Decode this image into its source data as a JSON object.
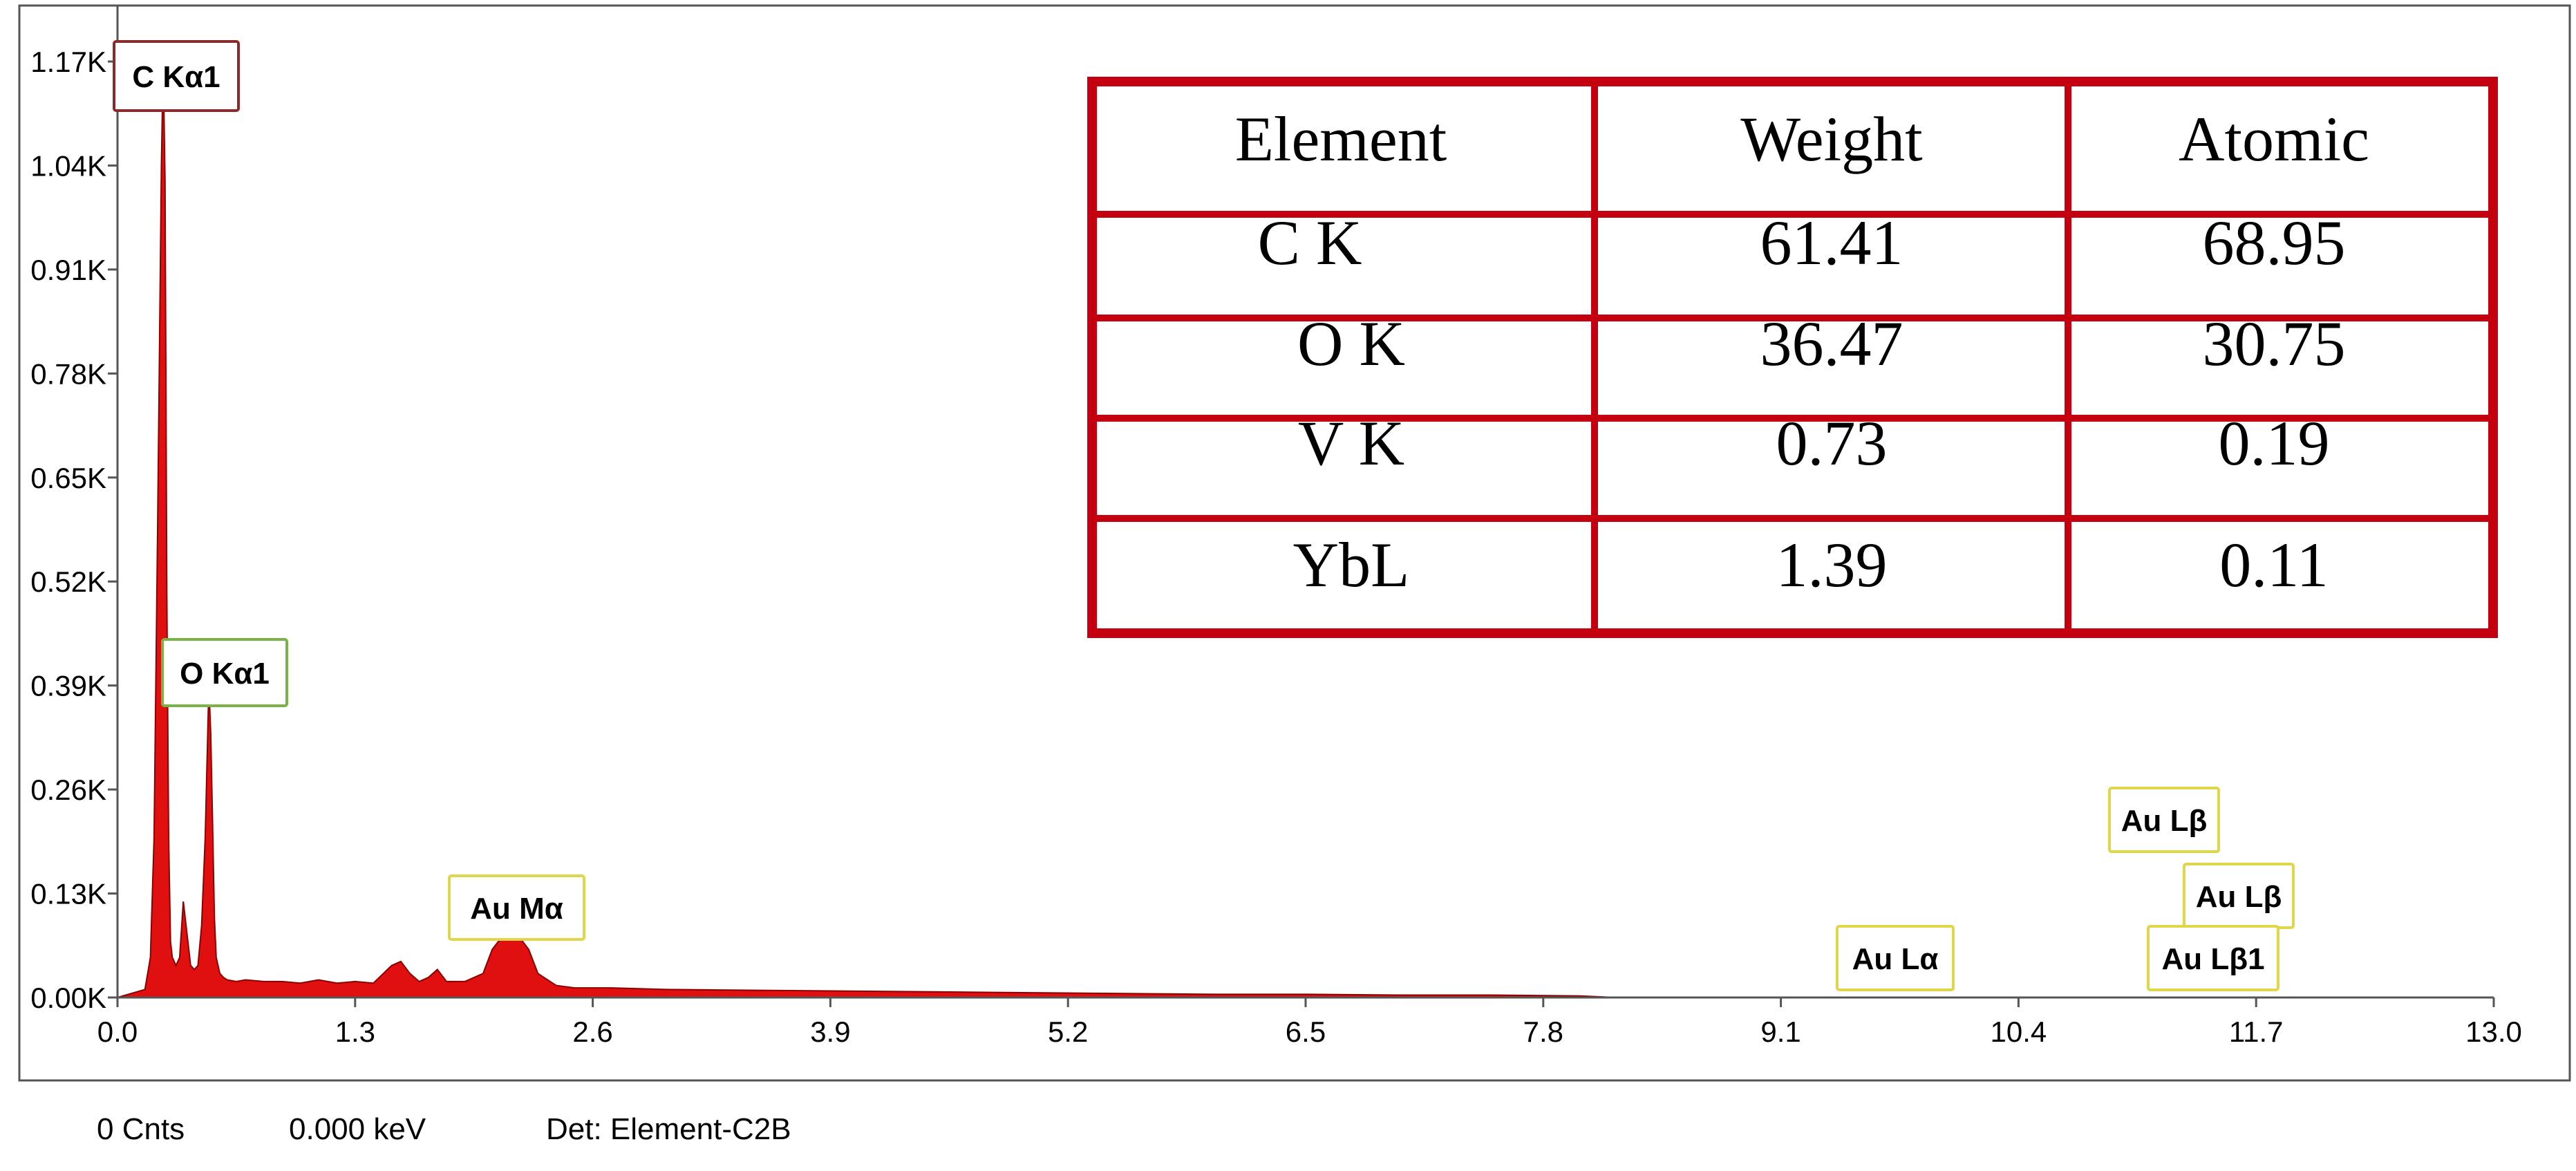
{
  "chart_data": {
    "type": "area",
    "title": "",
    "xlabel": "",
    "ylabel": "",
    "xlim": [
      0,
      13.0
    ],
    "ylim": [
      0,
      1.24
    ],
    "x_ticks": [
      "0.0",
      "1.3",
      "2.6",
      "3.9",
      "5.2",
      "6.5",
      "7.8",
      "9.1",
      "10.4",
      "11.7",
      "13.0"
    ],
    "y_ticks": [
      "0.00K",
      "0.13K",
      "0.26K",
      "0.39K",
      "0.52K",
      "0.65K",
      "0.78K",
      "0.91K",
      "1.04K",
      "1.17K"
    ],
    "series": [
      {
        "x": [
          0.0,
          0.15,
          0.18,
          0.2,
          0.22,
          0.24,
          0.25,
          0.26,
          0.27,
          0.28,
          0.29,
          0.3,
          0.32,
          0.34,
          0.36,
          0.38,
          0.4,
          0.42,
          0.44,
          0.46,
          0.48,
          0.5,
          0.51,
          0.52,
          0.53,
          0.54,
          0.56,
          0.58,
          0.6,
          0.65,
          0.7,
          0.8,
          0.9,
          1.0,
          1.1,
          1.2,
          1.3,
          1.4,
          1.5,
          1.55,
          1.6,
          1.65,
          1.7,
          1.75,
          1.8,
          1.9,
          2.0,
          2.05,
          2.1,
          2.15,
          2.2,
          2.25,
          2.3,
          2.4,
          2.5,
          2.7,
          3.0,
          3.5,
          4.0,
          4.5,
          5.0,
          5.5,
          6.0,
          6.5,
          7.0,
          7.5,
          8.0,
          8.2
        ],
        "y": [
          0.0,
          0.01,
          0.05,
          0.2,
          0.6,
          1.04,
          1.17,
          1.02,
          0.5,
          0.2,
          0.07,
          0.05,
          0.04,
          0.05,
          0.12,
          0.08,
          0.04,
          0.035,
          0.04,
          0.09,
          0.2,
          0.39,
          0.33,
          0.22,
          0.1,
          0.05,
          0.03,
          0.025,
          0.022,
          0.02,
          0.022,
          0.02,
          0.02,
          0.018,
          0.022,
          0.018,
          0.02,
          0.018,
          0.04,
          0.045,
          0.03,
          0.02,
          0.025,
          0.035,
          0.02,
          0.02,
          0.03,
          0.06,
          0.075,
          0.08,
          0.075,
          0.06,
          0.03,
          0.015,
          0.012,
          0.012,
          0.01,
          0.009,
          0.008,
          0.007,
          0.006,
          0.005,
          0.004,
          0.004,
          0.003,
          0.003,
          0.002,
          0.0
        ]
      }
    ],
    "peak_labels": [
      {
        "label": "C  Kα1",
        "x": 0.277,
        "color": "#8b2a2a"
      },
      {
        "label": "O  Kα1",
        "x": 0.525,
        "color": "#7ab24a"
      },
      {
        "label": "Au Mα",
        "x": 2.12,
        "color": "#e0d64a"
      },
      {
        "label": "Au Lα",
        "x": 9.71,
        "color": "#e0d64a"
      },
      {
        "label": "Au Lβ",
        "x": 11.44,
        "color": "#e0d64a"
      },
      {
        "label": "Au Lβ",
        "x": 11.58,
        "color": "#e0d64a"
      },
      {
        "label": "Au Lβ1",
        "x": 11.92,
        "color": "#e0d64a"
      }
    ],
    "fill_color": "#e01010",
    "grid": false
  },
  "composition_table": {
    "border_color": "#c40010",
    "headers": [
      "Element",
      "Weight",
      "Atomic"
    ],
    "rows": [
      {
        "element": "C K",
        "weight": "61.41",
        "atomic": "68.95"
      },
      {
        "element": "O K",
        "weight": "36.47",
        "atomic": "30.75"
      },
      {
        "element": "V K",
        "weight": "0.73",
        "atomic": "0.19"
      },
      {
        "element": "YbL",
        "weight": "1.39",
        "atomic": "0.11"
      }
    ]
  },
  "status_bar": {
    "counts": "0 Cnts",
    "energy": "0.000 keV",
    "detector": "Det: Element-C2B"
  }
}
